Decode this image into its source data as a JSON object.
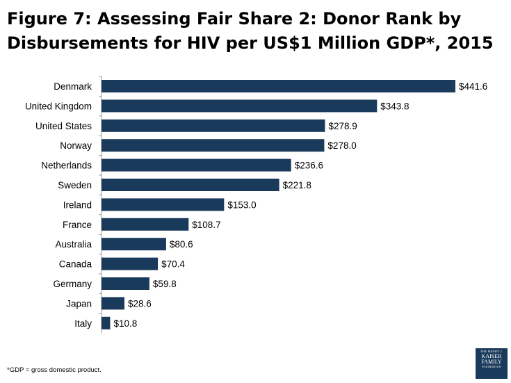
{
  "title": "Figure 7: Assessing Fair Share 2: Donor Rank by Disbursements for HIV per US$1 Million GDP*, 2015",
  "footnote": "*GDP = gross domestic product.",
  "logo": {
    "line1": "THE HENRY J.",
    "line2": "KAISER",
    "line3": "FAMILY",
    "line4": "FOUNDATION"
  },
  "colors": {
    "bar": "#1a3a5c",
    "axis": "#9a9a9a"
  },
  "chart_data": {
    "type": "bar",
    "orientation": "horizontal",
    "categories": [
      "Denmark",
      "United Kingdom",
      "United States",
      "Norway",
      "Netherlands",
      "Sweden",
      "Ireland",
      "France",
      "Australia",
      "Canada",
      "Germany",
      "Japan",
      "Italy"
    ],
    "values": [
      441.6,
      343.8,
      278.9,
      278.0,
      236.6,
      221.8,
      153.0,
      108.7,
      80.6,
      70.4,
      59.8,
      28.6,
      10.8
    ],
    "value_labels": [
      "$441.6",
      "$343.8",
      "$278.9",
      "$278.0",
      "$236.6",
      "$221.8",
      "$153.0",
      "$108.7",
      "$80.6",
      "$70.4",
      "$59.8",
      "$28.6",
      "$10.8"
    ],
    "title": "Figure 7: Assessing Fair Share 2: Donor Rank by Disbursements for HIV per US$1 Million GDP*, 2015",
    "xlabel": "",
    "ylabel": "",
    "xlim": [
      0,
      441.6
    ]
  }
}
